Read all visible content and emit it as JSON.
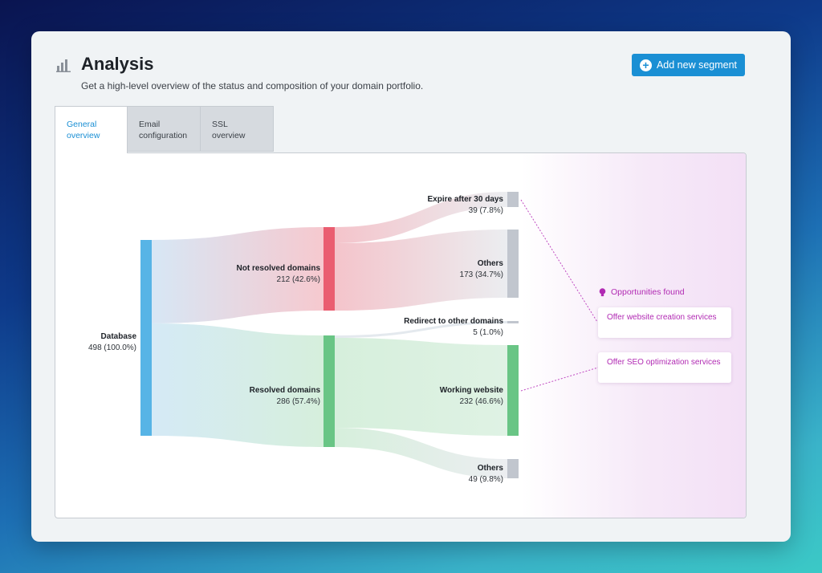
{
  "header": {
    "title": "Analysis",
    "subtitle": "Get a high-level overview of the status and composition of your domain portfolio.",
    "add_button_label": "Add new segment"
  },
  "tabs": [
    {
      "label": "General overview",
      "active": true
    },
    {
      "label": "Email configuration",
      "active": false
    },
    {
      "label": "SSL overview",
      "active": false
    }
  ],
  "sankey": {
    "nodes": [
      {
        "id": "database",
        "name": "Database",
        "value": "498 (100.0%)",
        "color": "#57b4e6"
      },
      {
        "id": "not-resolved",
        "name": "Not resolved domains",
        "value": "212 (42.6%)",
        "color": "#ea5d70"
      },
      {
        "id": "resolved",
        "name": "Resolved domains",
        "value": "286 (57.4%)",
        "color": "#69c585"
      },
      {
        "id": "expire",
        "name": "Expire after 30 days",
        "value": "39 (7.8%)",
        "color": "#c1c6ce"
      },
      {
        "id": "others-1",
        "name": "Others",
        "value": "173 (34.7%)",
        "color": "#c1c6ce"
      },
      {
        "id": "redirect",
        "name": "Redirect to other domains",
        "value": "5 (1.0%)",
        "color": "#c1c6ce"
      },
      {
        "id": "working",
        "name": "Working website",
        "value": "232 (46.6%)",
        "color": "#69c585"
      },
      {
        "id": "others-2",
        "name": "Others",
        "value": "49 (9.8%)",
        "color": "#c1c6ce"
      }
    ]
  },
  "opportunities": {
    "heading": "Opportunities found",
    "items": [
      {
        "label": "Offer website creation services"
      },
      {
        "label": "Offer SEO optimization services"
      }
    ]
  }
}
